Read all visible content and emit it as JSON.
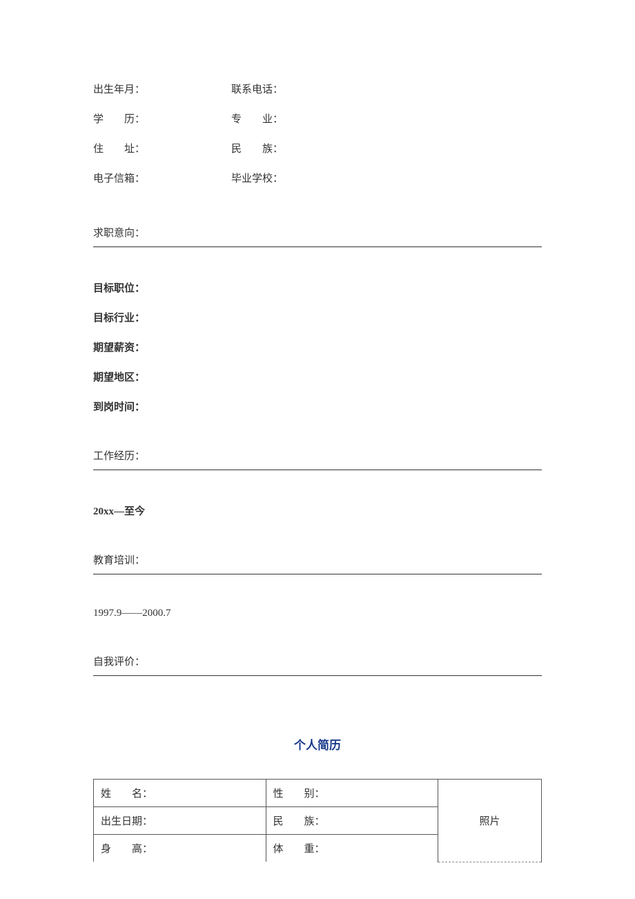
{
  "basic_info": {
    "birth": "出生年月：",
    "phone": "联系电话：",
    "edu": "学　　历：",
    "major": "专　　业：",
    "addr": "住　　址：",
    "ethnic": "民　　族：",
    "email": "电子信箱：",
    "school": "毕业学校："
  },
  "sections": {
    "intent": "求职意向：",
    "work": "工作经历：",
    "training": "教育培训：",
    "self_eval": "自我评价："
  },
  "intent_fields": {
    "target_position": "目标职位：",
    "target_industry": "目标行业：",
    "expected_salary": "期望薪资：",
    "expected_region": "期望地区：",
    "start_time": "到岗时间："
  },
  "work_entry": "20xx—至今",
  "training_entry": "1997.9——2000.7",
  "doc_title": "个人简历",
  "table": {
    "name": "姓　　名：",
    "gender": "性　　别：",
    "birth": "出生日期：",
    "ethnic": "民　　族：",
    "height": "身　　高：",
    "weight": "体　　重：",
    "photo": "照片"
  },
  "colors": {
    "text": "#333333",
    "title": "#1a3a8a",
    "background": "#ffffff",
    "border": "#555555",
    "dash": "#888888"
  },
  "typography": {
    "body_font": "SimSun",
    "body_size_pt": 11,
    "title_size_pt": 13
  }
}
